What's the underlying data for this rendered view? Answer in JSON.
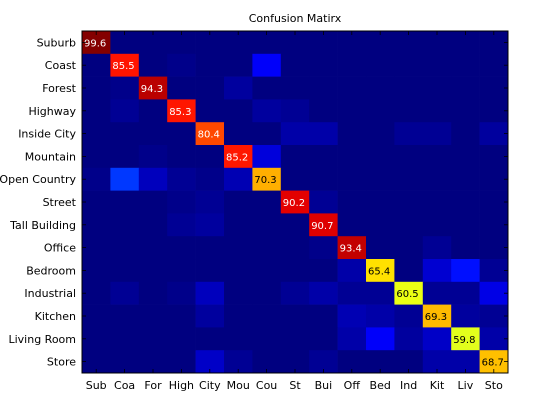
{
  "chart_data": {
    "type": "heatmap",
    "title": "Confusion Matirx",
    "xlabel": "",
    "ylabel": "",
    "row_labels": [
      "Suburb",
      "Coast",
      "Forest",
      "Highway",
      "Inside City",
      "Mountain",
      "Open Country",
      "Street",
      "Tall Building",
      "Office",
      "Bedroom",
      "Industrial",
      "Kitchen",
      "Living Room",
      "Store"
    ],
    "col_labels": [
      "Sub",
      "Coa",
      "For",
      "High",
      "City",
      "Mou",
      "Cou",
      "St",
      "Bui",
      "Off",
      "Bed",
      "Ind",
      "Kit",
      "Liv",
      "Sto"
    ],
    "color_scale": "jet",
    "value_range": [
      0,
      100
    ],
    "diagonal": [
      99.6,
      85.5,
      94.3,
      85.3,
      80.4,
      85.2,
      70.3,
      90.2,
      90.7,
      93.4,
      65.4,
      60.5,
      69.3,
      59.8,
      68.7
    ],
    "matrix": [
      [
        99.6,
        0,
        0,
        0,
        0,
        0,
        0,
        0,
        0,
        0,
        0,
        0,
        0,
        0,
        0
      ],
      [
        0,
        85.5,
        0,
        1,
        0,
        0,
        12,
        0,
        0,
        0,
        0,
        0,
        0,
        0,
        0
      ],
      [
        0,
        1,
        94.3,
        0,
        0,
        3,
        0,
        0,
        0,
        0,
        0,
        0,
        0,
        0,
        0
      ],
      [
        0,
        2,
        0,
        85.3,
        0,
        0,
        3,
        2,
        0,
        0,
        0,
        0,
        0,
        0,
        0
      ],
      [
        0,
        0,
        0,
        0,
        80.4,
        0,
        0,
        4,
        4,
        0,
        0,
        2,
        2,
        0,
        3
      ],
      [
        0,
        0,
        1,
        0,
        0,
        85.2,
        9,
        0,
        0,
        0,
        0,
        0,
        0,
        0,
        0
      ],
      [
        1,
        18,
        6,
        2,
        1,
        5,
        70.3,
        0,
        0,
        0,
        0,
        0,
        0,
        0,
        0
      ],
      [
        0,
        0,
        0,
        1,
        2,
        0,
        0,
        90.2,
        2,
        0,
        0,
        0,
        0,
        0,
        0
      ],
      [
        0,
        0,
        0,
        2,
        3,
        0,
        0,
        0,
        90.7,
        0,
        0,
        0,
        0,
        0,
        0
      ],
      [
        0,
        0,
        0,
        0,
        0,
        0,
        0,
        0,
        1,
        93.4,
        0,
        0,
        2,
        0,
        0
      ],
      [
        0,
        0,
        0,
        0,
        0,
        0,
        0,
        0,
        0,
        4,
        65.4,
        0,
        8,
        14,
        2
      ],
      [
        0,
        2,
        0,
        1,
        6,
        0,
        0,
        2,
        4,
        2,
        2,
        60.5,
        2,
        2,
        10
      ],
      [
        0,
        0,
        0,
        0,
        3,
        0,
        0,
        0,
        0,
        5,
        4,
        2,
        69.3,
        3,
        2
      ],
      [
        0,
        0,
        0,
        0,
        0,
        0,
        0,
        0,
        0,
        4,
        12,
        3,
        7,
        59.8,
        4
      ],
      [
        0,
        0,
        0,
        0,
        7,
        2,
        0,
        0,
        2,
        0,
        0,
        0,
        4,
        4,
        68.7
      ]
    ]
  }
}
